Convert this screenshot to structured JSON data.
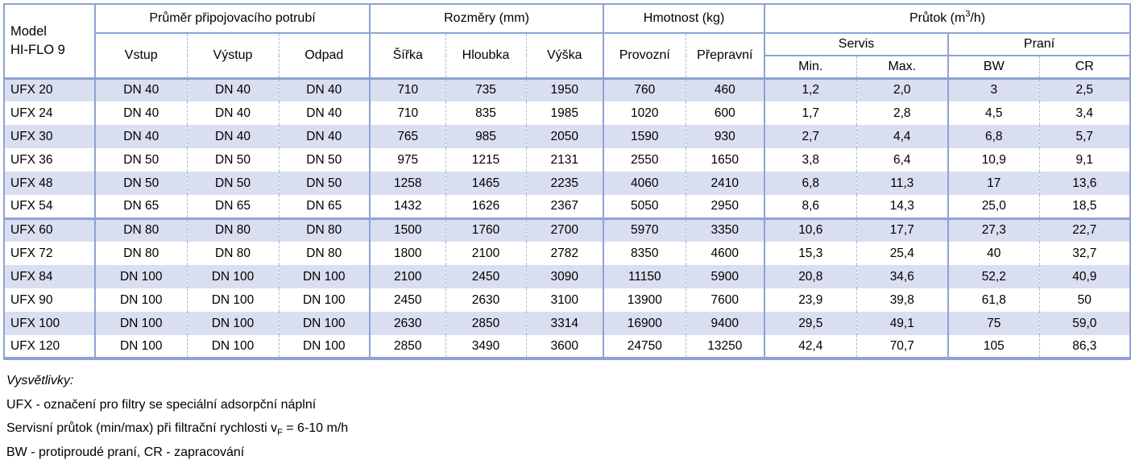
{
  "colors": {
    "border": "#8FA2D4",
    "dashed_border": "#A9B7E2",
    "row_shade": "#D9DFF0"
  },
  "table": {
    "model": {
      "line1": "Model",
      "line2": "HI-FLO 9"
    },
    "groups": {
      "pipe": "Průměr připojovacího potrubí",
      "dims": "Rozměry (mm)",
      "weight": "Hmotnost (kg)",
      "flow_prefix": "Průtok (m",
      "flow_sup": "3",
      "flow_suffix": "/h)"
    },
    "subgroups": {
      "servis": "Servis",
      "prani": "Praní"
    },
    "columns": {
      "vstup": "Vstup",
      "vystup": "Výstup",
      "odpad": "Odpad",
      "sirka": "Šířka",
      "hloubka": "Hloubka",
      "vyska": "Výška",
      "provozni": "Provozní",
      "prepravni": "Přepravní",
      "min": "Min.",
      "max": "Max.",
      "bw": "BW",
      "cr": "CR"
    },
    "rows": [
      [
        "UFX 20",
        "DN 40",
        "DN 40",
        "DN 40",
        "710",
        "735",
        "1950",
        "760",
        "460",
        "1,2",
        "2,0",
        "3",
        "2,5"
      ],
      [
        "UFX 24",
        "DN 40",
        "DN 40",
        "DN 40",
        "710",
        "835",
        "1985",
        "1020",
        "600",
        "1,7",
        "2,8",
        "4,5",
        "3,4"
      ],
      [
        "UFX 30",
        "DN 40",
        "DN 40",
        "DN 40",
        "765",
        "985",
        "2050",
        "1590",
        "930",
        "2,7",
        "4,4",
        "6,8",
        "5,7"
      ],
      [
        "UFX 36",
        "DN 50",
        "DN 50",
        "DN 50",
        "975",
        "1215",
        "2131",
        "2550",
        "1650",
        "3,8",
        "6,4",
        "10,9",
        "9,1"
      ],
      [
        "UFX 48",
        "DN 50",
        "DN 50",
        "DN 50",
        "1258",
        "1465",
        "2235",
        "4060",
        "2410",
        "6,8",
        "11,3",
        "17",
        "13,6"
      ],
      [
        "UFX 54",
        "DN 65",
        "DN 65",
        "DN 65",
        "1432",
        "1626",
        "2367",
        "5050",
        "2950",
        "8,6",
        "14,3",
        "25,0",
        "18,5"
      ],
      [
        "UFX 60",
        "DN 80",
        "DN 80",
        "DN 80",
        "1500",
        "1760",
        "2700",
        "5970",
        "3350",
        "10,6",
        "17,7",
        "27,3",
        "22,7"
      ],
      [
        "UFX 72",
        "DN 80",
        "DN 80",
        "DN 80",
        "1800",
        "2100",
        "2782",
        "8350",
        "4600",
        "15,3",
        "25,4",
        "40",
        "32,7"
      ],
      [
        "UFX 84",
        "DN 100",
        "DN 100",
        "DN 100",
        "2100",
        "2450",
        "3090",
        "11150",
        "5900",
        "20,8",
        "34,6",
        "52,2",
        "40,9"
      ],
      [
        "UFX 90",
        "DN 100",
        "DN 100",
        "DN 100",
        "2450",
        "2630",
        "3100",
        "13900",
        "7600",
        "23,9",
        "39,8",
        "61,8",
        "50"
      ],
      [
        "UFX 100",
        "DN 100",
        "DN 100",
        "DN 100",
        "2630",
        "2850",
        "3314",
        "16900",
        "9400",
        "29,5",
        "49,1",
        "75",
        "59,0"
      ],
      [
        "UFX 120",
        "DN 100",
        "DN 100",
        "DN 100",
        "2850",
        "3490",
        "3600",
        "24750",
        "13250",
        "42,4",
        "70,7",
        "105",
        "86,3"
      ]
    ],
    "shaded_row_indexes": [
      0,
      2,
      4,
      6,
      8,
      10
    ],
    "thick_border_after_row_index": 5
  },
  "footnotes": {
    "heading": "Vysvětlivky:",
    "line1": "UFX - označení pro filtry se speciální adsorpční náplní",
    "line2_prefix": "Servisní průtok (min/max) při filtrační rychlosti v",
    "line2_sub": "F",
    "line2_suffix": " = 6-10 m/h",
    "line3": "BW - protiproudé praní, CR - zapracování"
  }
}
